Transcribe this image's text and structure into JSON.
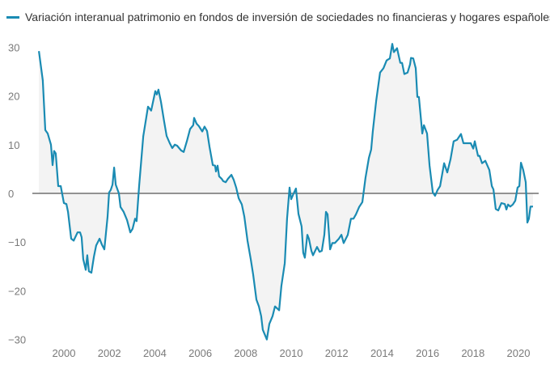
{
  "chart_data": {
    "type": "area",
    "title": "",
    "xlabel": "",
    "ylabel": "",
    "xlim": [
      1998.9,
      2020.7
    ],
    "ylim": [
      -30,
      30
    ],
    "grid": false,
    "legend_placement": "top-left",
    "x_ticks": [
      "2000",
      "2002",
      "2004",
      "2006",
      "2008",
      "2010",
      "2012",
      "2014",
      "2016",
      "2018",
      "2020"
    ],
    "x_tick_values": [
      2000,
      2002,
      2004,
      2006,
      2008,
      2010,
      2012,
      2014,
      2016,
      2018,
      2020
    ],
    "y_ticks": [
      "30",
      "20",
      "10",
      "0",
      "−10",
      "−20",
      "−30"
    ],
    "y_tick_values": [
      30,
      20,
      10,
      0,
      -10,
      -20,
      -30
    ],
    "colors": {
      "line": "#1a8bb3",
      "fill": "#f3f3f3",
      "zero": "#555555"
    },
    "series": [
      {
        "name": "Variación interanual patrimonio en fondos de inversión de sociedades no financieras y hogares españoles",
        "x": [
          1998.9,
          1999.07,
          1999.18,
          1999.29,
          1999.43,
          1999.5,
          1999.57,
          1999.64,
          1999.75,
          1999.86,
          2000.0,
          2000.11,
          2000.18,
          2000.32,
          2000.43,
          2000.6,
          2000.71,
          2000.78,
          2000.85,
          2000.96,
          2001.03,
          2001.1,
          2001.21,
          2001.32,
          2001.42,
          2001.57,
          2001.67,
          2001.78,
          2001.92,
          2001.99,
          2002.06,
          2002.14,
          2002.21,
          2002.28,
          2002.42,
          2002.49,
          2002.63,
          2002.78,
          2002.92,
          2003.02,
          2003.13,
          2003.2,
          2003.31,
          2003.49,
          2003.7,
          2003.84,
          2004.02,
          2004.09,
          2004.16,
          2004.27,
          2004.41,
          2004.52,
          2004.66,
          2004.77,
          2004.88,
          2004.98,
          2005.16,
          2005.27,
          2005.41,
          2005.55,
          2005.69,
          2005.73,
          2005.84,
          2005.94,
          2006.09,
          2006.19,
          2006.3,
          2006.41,
          2006.55,
          2006.65,
          2006.69,
          2006.76,
          2006.83,
          2006.94,
          2007.01,
          2007.12,
          2007.22,
          2007.37,
          2007.47,
          2007.58,
          2007.69,
          2007.83,
          2007.94,
          2008.08,
          2008.22,
          2008.33,
          2008.47,
          2008.58,
          2008.68,
          2008.75,
          2008.93,
          2009.04,
          2009.18,
          2009.29,
          2009.47,
          2009.57,
          2009.72,
          2009.82,
          2009.93,
          2010.0,
          2010.11,
          2010.21,
          2010.32,
          2010.46,
          2010.53,
          2010.6,
          2010.71,
          2010.78,
          2010.89,
          2010.96,
          2011.14,
          2011.25,
          2011.35,
          2011.46,
          2011.53,
          2011.6,
          2011.71,
          2011.81,
          2011.92,
          2012.1,
          2012.21,
          2012.31,
          2012.49,
          2012.63,
          2012.74,
          2012.85,
          2012.99,
          2013.13,
          2013.27,
          2013.42,
          2013.52,
          2013.59,
          2013.74,
          2013.91,
          2014.06,
          2014.2,
          2014.34,
          2014.45,
          2014.52,
          2014.66,
          2014.8,
          2014.88,
          2014.98,
          2015.12,
          2015.23,
          2015.27,
          2015.37,
          2015.48,
          2015.55,
          2015.62,
          2015.77,
          2015.84,
          2015.98,
          2016.09,
          2016.23,
          2016.33,
          2016.44,
          2016.55,
          2016.73,
          2016.87,
          2017.01,
          2017.15,
          2017.3,
          2017.47,
          2017.58,
          2017.9,
          2018.01,
          2018.08,
          2018.22,
          2018.29,
          2018.4,
          2018.54,
          2018.72,
          2018.83,
          2018.9,
          2019.0,
          2019.11,
          2019.25,
          2019.4,
          2019.47,
          2019.54,
          2019.64,
          2019.75,
          2019.86,
          2019.96,
          2020.04,
          2020.11,
          2020.21,
          2020.32,
          2020.39,
          2020.46,
          2020.53,
          2020.64
        ],
        "y": [
          29.2,
          23.2,
          13.0,
          12.3,
          10.0,
          5.8,
          8.7,
          8.2,
          1.5,
          1.5,
          -2.0,
          -2.2,
          -3.8,
          -9.3,
          -9.7,
          -8.0,
          -8.0,
          -9.0,
          -13.5,
          -15.7,
          -12.7,
          -16.0,
          -16.3,
          -13.0,
          -10.7,
          -9.3,
          -10.5,
          -11.5,
          -4.8,
          0.2,
          0.7,
          1.8,
          5.3,
          1.8,
          0.0,
          -2.8,
          -3.8,
          -5.5,
          -8.0,
          -7.3,
          -5.2,
          -5.7,
          1.5,
          11.7,
          17.8,
          17.0,
          21.0,
          20.3,
          21.3,
          18.8,
          14.8,
          11.8,
          10.3,
          9.3,
          10.0,
          9.8,
          8.8,
          8.5,
          10.7,
          13.2,
          14.0,
          15.5,
          14.3,
          13.8,
          12.7,
          13.7,
          12.8,
          9.5,
          5.8,
          5.7,
          4.5,
          5.7,
          3.5,
          3.0,
          2.5,
          2.3,
          3.0,
          3.8,
          2.8,
          1.2,
          -1.0,
          -2.3,
          -4.8,
          -9.7,
          -13.5,
          -16.8,
          -21.8,
          -23.2,
          -25.2,
          -28.0,
          -30.0,
          -26.8,
          -25.2,
          -23.2,
          -24.0,
          -19.0,
          -14.3,
          -5.2,
          1.2,
          -1.2,
          0.0,
          1.0,
          -4.2,
          -6.8,
          -12.2,
          -13.2,
          -8.5,
          -9.3,
          -11.8,
          -12.7,
          -11.0,
          -12.0,
          -11.8,
          -8.5,
          -3.8,
          -4.3,
          -11.5,
          -10.2,
          -10.2,
          -9.3,
          -8.5,
          -10.2,
          -8.5,
          -5.2,
          -5.2,
          -4.3,
          -2.8,
          -1.8,
          3.2,
          7.3,
          9.0,
          12.7,
          19.0,
          24.8,
          25.7,
          27.3,
          27.7,
          30.7,
          29.0,
          29.8,
          26.8,
          26.8,
          24.5,
          24.8,
          26.5,
          27.8,
          27.7,
          25.7,
          19.8,
          19.8,
          12.3,
          14.0,
          12.3,
          5.7,
          0.2,
          -0.5,
          0.7,
          1.5,
          6.2,
          4.3,
          7.0,
          10.7,
          11.0,
          12.2,
          10.3,
          10.3,
          9.2,
          10.7,
          7.7,
          7.7,
          6.2,
          6.7,
          4.8,
          1.5,
          0.8,
          -3.2,
          -3.5,
          -2.0,
          -2.2,
          -3.3,
          -2.3,
          -2.7,
          -2.3,
          -1.5,
          1.2,
          1.5,
          6.3,
          4.8,
          2.3,
          -6.0,
          -5.2,
          -2.7,
          -2.7
        ]
      }
    ]
  }
}
